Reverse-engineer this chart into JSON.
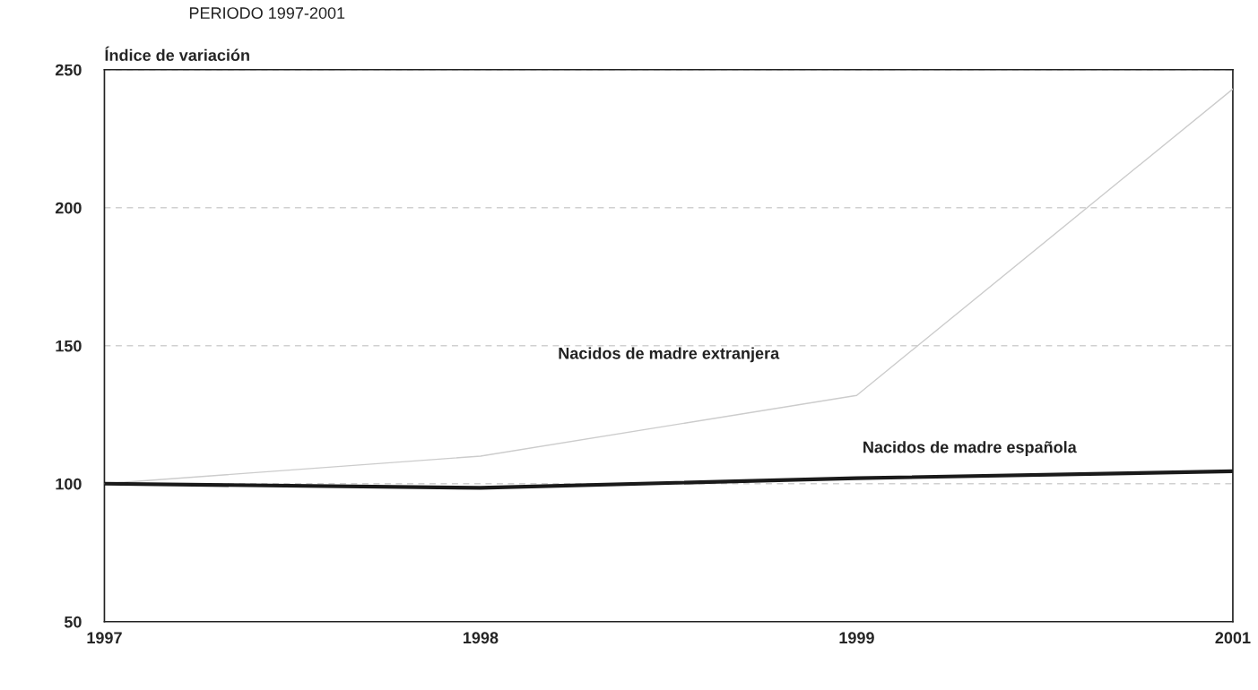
{
  "chart_data": {
    "type": "line",
    "title": "PERIODO 1997-2001",
    "ylabel": "Índice de variación",
    "categories": [
      "1997",
      "1998",
      "1999",
      "2001"
    ],
    "series": [
      {
        "name": "Nacidos de madre extranjera",
        "color": "#cccccc",
        "values": [
          100,
          110,
          132,
          243
        ]
      },
      {
        "name": "Nacidos de madre española",
        "color": "#1a1a1a",
        "values": [
          100,
          98.5,
          102,
          104.5
        ]
      }
    ],
    "ylim": [
      50,
      250
    ],
    "yticks": [
      50,
      100,
      150,
      200,
      250
    ],
    "grid": "y",
    "line_style": "solid",
    "marker": "none",
    "legend": false
  }
}
